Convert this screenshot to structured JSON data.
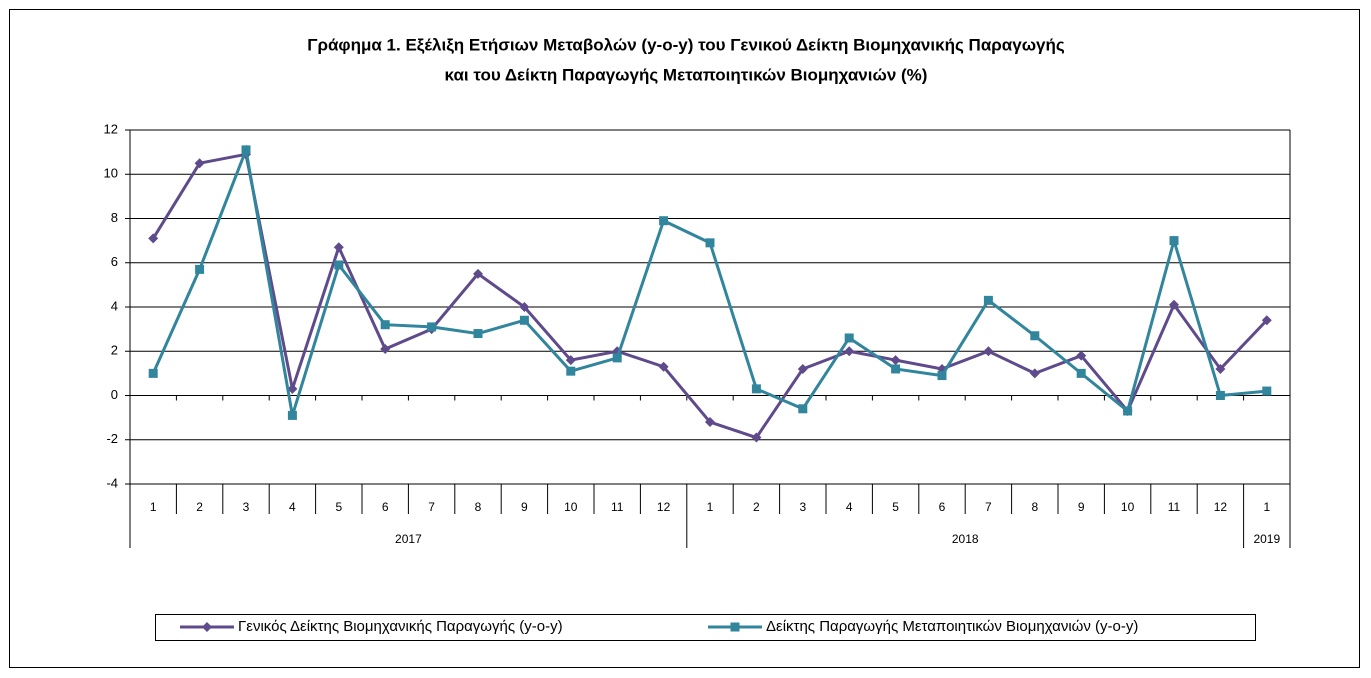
{
  "chart_data": {
    "type": "line",
    "title": [
      "Γράφημα 1. Εξέλιξη Ετήσιων Μεταβολών (y-o-y) του Γενικού Δείκτη Βιομηχανικής Παραγωγής",
      "και του Δείκτη Παραγωγής Μεταποιητικών Βιομηχανιών (%)"
    ],
    "years": [
      {
        "name": "2017",
        "months": [
          "1",
          "2",
          "3",
          "4",
          "5",
          "6",
          "7",
          "8",
          "9",
          "10",
          "11",
          "12"
        ]
      },
      {
        "name": "2018",
        "months": [
          "1",
          "2",
          "3",
          "4",
          "5",
          "6",
          "7",
          "8",
          "9",
          "10",
          "11",
          "12"
        ]
      },
      {
        "name": "2019",
        "months": [
          "1"
        ]
      }
    ],
    "series": [
      {
        "name": "Γενικός Δείκτης Βιομηχανικής Παραγωγής (y-o-y)",
        "color": "#5f4a8b",
        "marker": "diamond",
        "values": [
          7.1,
          10.5,
          10.9,
          0.3,
          6.7,
          2.1,
          3.0,
          5.5,
          4.0,
          1.6,
          2.0,
          1.3,
          -1.2,
          -1.9,
          1.2,
          2.0,
          1.6,
          1.2,
          2.0,
          1.0,
          1.8,
          -0.7,
          4.1,
          1.2,
          3.4
        ]
      },
      {
        "name": "Δείκτης Παραγωγής Μεταποιητικών Βιομηχανιών (y-o-y)",
        "color": "#31859c",
        "marker": "square",
        "values": [
          1.0,
          5.7,
          11.1,
          -0.9,
          5.9,
          3.2,
          3.1,
          2.8,
          3.4,
          1.1,
          1.7,
          7.9,
          6.9,
          0.3,
          -0.6,
          2.6,
          1.2,
          0.9,
          4.3,
          2.7,
          1.0,
          -0.7,
          7.0,
          0.0,
          0.2
        ]
      }
    ],
    "ylim": [
      -4,
      12
    ],
    "yticks": [
      -4,
      -2,
      0,
      2,
      4,
      6,
      8,
      10,
      12
    ],
    "grid": true,
    "legend": "bottom"
  }
}
